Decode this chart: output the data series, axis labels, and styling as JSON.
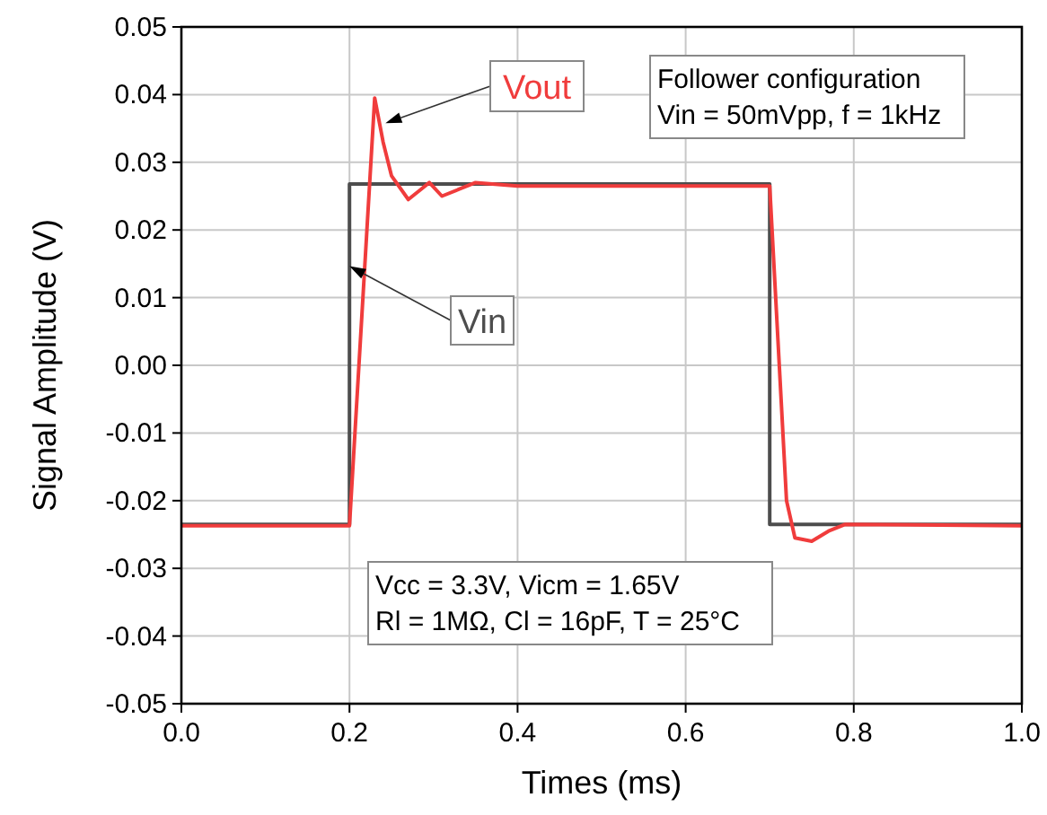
{
  "chart_data": {
    "type": "line",
    "xlabel": "Times (ms)",
    "ylabel": "Signal Amplitude (V)",
    "xlim": [
      0,
      1
    ],
    "ylim": [
      -0.05,
      0.05
    ],
    "xticks": [
      {
        "value": 0,
        "label": "0.0"
      },
      0.2,
      0.4,
      0.6,
      0.8,
      {
        "value": 1,
        "label": "1.0"
      }
    ],
    "yticks": [
      -0.05,
      -0.04,
      -0.03,
      -0.02,
      -0.01,
      {
        "value": 0,
        "label": "0.00"
      },
      0.01,
      0.02,
      0.03,
      0.04,
      0.05
    ],
    "grid": true,
    "line_style": "solid",
    "marker": "none",
    "series": [
      {
        "name": "Vin",
        "color": "#4d4d4d",
        "x": [
          0,
          0.2,
          0.2,
          0.7,
          0.7,
          1.0
        ],
        "values": [
          -0.0235,
          -0.0235,
          0.0268,
          0.0268,
          -0.0235,
          -0.0235
        ]
      },
      {
        "name": "Vout",
        "color": "#f03c3c",
        "x": [
          0,
          0.2,
          0.23,
          0.24,
          0.25,
          0.27,
          0.285,
          0.295,
          0.31,
          0.33,
          0.35,
          0.4,
          0.7,
          0.72,
          0.73,
          0.75,
          0.77,
          0.79,
          1.0
        ],
        "values": [
          -0.0237,
          -0.0237,
          0.0395,
          0.033,
          0.028,
          0.0245,
          0.026,
          0.027,
          0.025,
          0.026,
          0.027,
          0.0265,
          0.0265,
          -0.02,
          -0.0255,
          -0.026,
          -0.0245,
          -0.0235,
          -0.0237
        ]
      }
    ],
    "annotations": [
      "Follower configuration\nVin = 50mVpp, f = 1kHz",
      "Vcc = 3.3V, Vicm = 1.65V\nRl = 1MΩ, Cl = 16pF, T = 25°C"
    ]
  }
}
